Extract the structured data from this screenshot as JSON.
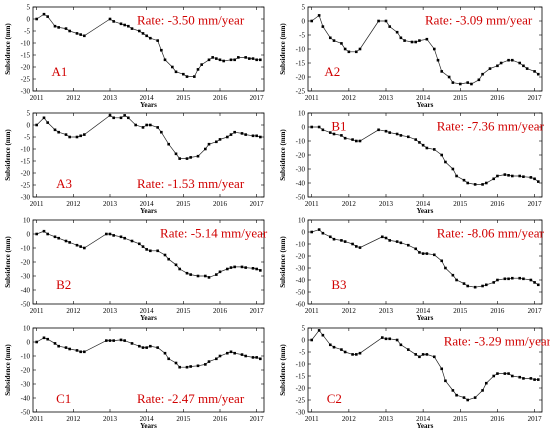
{
  "figure": {
    "panel_ylabel": "Subsidence (mm)",
    "panel_xlabel": "Years"
  },
  "chart_data": [
    {
      "type": "line",
      "panel": "A1",
      "annotation": "Rate: -3.50 mm/year",
      "xlabel": "Years",
      "ylabel": "Subsidence (mm)",
      "xlim": [
        2010.9,
        2017.2
      ],
      "ylim": [
        -30,
        5
      ],
      "xticks": [
        2011,
        2012,
        2013,
        2014,
        2015,
        2016,
        2017
      ],
      "yticks": [
        5,
        0,
        -5,
        -10,
        -15,
        -20,
        -25,
        -30
      ],
      "series": [
        {
          "x": [
            2011.0,
            2011.2,
            2011.3,
            2011.5,
            2011.6,
            2011.8,
            2011.9,
            2012.1,
            2012.2,
            2012.3,
            2013.0,
            2013.1,
            2013.3,
            2013.4,
            2013.5,
            2013.6,
            2013.8,
            2013.9,
            2014.0,
            2014.1,
            2014.3,
            2014.4,
            2014.5,
            2014.7,
            2014.8,
            2015.0,
            2015.1,
            2015.3,
            2015.4,
            2015.5,
            2015.7,
            2015.8,
            2015.9,
            2016.0,
            2016.1,
            2016.3,
            2016.4,
            2016.5,
            2016.7,
            2016.8,
            2016.9,
            2017.0,
            2017.1
          ],
          "y": [
            0,
            2,
            1,
            -3,
            -3.5,
            -4,
            -5,
            -6,
            -6.5,
            -7,
            0,
            -1,
            -2,
            -2.5,
            -3,
            -4,
            -5,
            -6,
            -7,
            -8,
            -9,
            -13,
            -17,
            -20,
            -22,
            -23,
            -24,
            -24,
            -21,
            -19,
            -17,
            -16,
            -16.5,
            -17,
            -17.5,
            -17,
            -17,
            -16,
            -16,
            -16.5,
            -16.5,
            -17,
            -17
          ]
        }
      ]
    },
    {
      "type": "line",
      "panel": "A2",
      "annotation": "Rate: -3.09 mm/year",
      "xlabel": "Years",
      "ylabel": "Subsidence (mm)",
      "xlim": [
        2010.9,
        2017.2
      ],
      "ylim": [
        -25,
        5
      ],
      "xticks": [
        2011,
        2012,
        2013,
        2014,
        2015,
        2016,
        2017
      ],
      "yticks": [
        5,
        0,
        -5,
        -10,
        -15,
        -20,
        -25
      ],
      "series": [
        {
          "x": [
            2011.0,
            2011.2,
            2011.3,
            2011.5,
            2011.6,
            2011.8,
            2011.9,
            2012.0,
            2012.2,
            2012.3,
            2012.8,
            2013.0,
            2013.1,
            2013.3,
            2013.4,
            2013.5,
            2013.7,
            2013.8,
            2013.9,
            2014.1,
            2014.3,
            2014.4,
            2014.5,
            2014.7,
            2014.8,
            2015.0,
            2015.2,
            2015.3,
            2015.5,
            2015.6,
            2015.8,
            2016.0,
            2016.1,
            2016.3,
            2016.4,
            2016.6,
            2016.7,
            2016.8,
            2017.0,
            2017.1
          ],
          "y": [
            0,
            2,
            -2,
            -6,
            -7,
            -8,
            -10,
            -11,
            -11,
            -10,
            0,
            0,
            -2,
            -4,
            -6,
            -7,
            -7.5,
            -7.5,
            -7,
            -6.5,
            -10,
            -14,
            -18,
            -20,
            -22,
            -22.5,
            -22,
            -22.5,
            -21,
            -19,
            -17,
            -16,
            -15,
            -14,
            -14,
            -15,
            -16,
            -17,
            -18,
            -19
          ]
        }
      ]
    },
    {
      "type": "line",
      "panel": "A3",
      "annotation": "Rate: -1.53 mm/year",
      "xlabel": "Years",
      "ylabel": "Subsidence (mm)",
      "xlim": [
        2010.9,
        2017.2
      ],
      "ylim": [
        -30,
        5
      ],
      "xticks": [
        2011,
        2012,
        2013,
        2014,
        2015,
        2016,
        2017
      ],
      "yticks": [
        5,
        0,
        -5,
        -10,
        -15,
        -20,
        -25,
        -30
      ],
      "series": [
        {
          "x": [
            2011.0,
            2011.2,
            2011.3,
            2011.5,
            2011.6,
            2011.8,
            2011.9,
            2012.1,
            2012.2,
            2012.3,
            2013.0,
            2013.1,
            2013.3,
            2013.4,
            2013.5,
            2013.7,
            2013.9,
            2014.0,
            2014.1,
            2014.3,
            2014.4,
            2014.6,
            2014.8,
            2014.9,
            2015.1,
            2015.2,
            2015.4,
            2015.6,
            2015.7,
            2015.9,
            2016.0,
            2016.2,
            2016.3,
            2016.4,
            2016.6,
            2016.7,
            2016.9,
            2017.0,
            2017.1
          ],
          "y": [
            0,
            3,
            1,
            -2,
            -3,
            -4,
            -5,
            -5,
            -4.5,
            -4,
            4,
            3,
            3,
            4,
            3,
            0,
            -1,
            0,
            0,
            -1,
            -3,
            -8,
            -12,
            -14,
            -14,
            -13.5,
            -13,
            -10,
            -8,
            -7,
            -6,
            -5,
            -4,
            -3,
            -3.5,
            -4,
            -4.5,
            -4.5,
            -5
          ]
        }
      ]
    },
    {
      "type": "line",
      "panel": "B1",
      "annotation": "Rate: -7.36 mm/year",
      "xlabel": "Years",
      "ylabel": "Subsidence (mm)",
      "xlim": [
        2010.9,
        2017.2
      ],
      "ylim": [
        -50,
        10
      ],
      "xticks": [
        2011,
        2012,
        2013,
        2014,
        2015,
        2016,
        2017
      ],
      "yticks": [
        10,
        0,
        -10,
        -20,
        -30,
        -40,
        -50
      ],
      "series": [
        {
          "x": [
            2011.0,
            2011.2,
            2011.3,
            2011.5,
            2011.6,
            2011.8,
            2011.9,
            2012.1,
            2012.2,
            2012.3,
            2012.8,
            2013.0,
            2013.1,
            2013.3,
            2013.4,
            2013.6,
            2013.8,
            2013.9,
            2014.0,
            2014.1,
            2014.3,
            2014.5,
            2014.6,
            2014.8,
            2014.9,
            2015.1,
            2015.2,
            2015.4,
            2015.6,
            2015.7,
            2015.9,
            2016.0,
            2016.2,
            2016.3,
            2016.4,
            2016.6,
            2016.7,
            2016.9,
            2017.0,
            2017.1
          ],
          "y": [
            0,
            0,
            -2,
            -4,
            -5,
            -6,
            -8,
            -9,
            -10,
            -10,
            -2,
            -3,
            -4,
            -5,
            -6,
            -7,
            -9,
            -11,
            -13,
            -15,
            -16,
            -20,
            -25,
            -30,
            -35,
            -38,
            -40,
            -41,
            -41,
            -40,
            -37,
            -35,
            -34,
            -34.5,
            -35,
            -35,
            -35.5,
            -36,
            -37,
            -39
          ]
        }
      ]
    },
    {
      "type": "line",
      "panel": "B2",
      "annotation": "Rate: -5.14 mm/year",
      "xlabel": "Years",
      "ylabel": "Subsidence (mm)",
      "xlim": [
        2010.9,
        2017.2
      ],
      "ylim": [
        -50,
        10
      ],
      "xticks": [
        2011,
        2012,
        2013,
        2014,
        2015,
        2016,
        2017
      ],
      "yticks": [
        10,
        0,
        -10,
        -20,
        -30,
        -40,
        -50
      ],
      "series": [
        {
          "x": [
            2011.0,
            2011.2,
            2011.3,
            2011.5,
            2011.6,
            2011.8,
            2011.9,
            2012.1,
            2012.2,
            2012.3,
            2012.9,
            2013.0,
            2013.1,
            2013.3,
            2013.4,
            2013.6,
            2013.8,
            2013.9,
            2014.0,
            2014.1,
            2014.3,
            2014.5,
            2014.6,
            2014.8,
            2014.9,
            2015.1,
            2015.2,
            2015.4,
            2015.6,
            2015.7,
            2015.9,
            2016.0,
            2016.2,
            2016.3,
            2016.4,
            2016.6,
            2016.7,
            2016.9,
            2017.0,
            2017.1
          ],
          "y": [
            0,
            2,
            0,
            -2,
            -3,
            -5,
            -6,
            -8,
            -9,
            -10,
            0,
            0,
            -1,
            -2,
            -3,
            -5,
            -7,
            -9,
            -11,
            -12,
            -12,
            -15,
            -18,
            -22,
            -25,
            -28,
            -29,
            -30,
            -30,
            -31,
            -29,
            -27,
            -25,
            -24,
            -23.5,
            -23.5,
            -24,
            -24.5,
            -25,
            -26
          ]
        }
      ]
    },
    {
      "type": "line",
      "panel": "B3",
      "annotation": "Rate: -8.06 mm/year",
      "xlabel": "Years",
      "ylabel": "Subsidence (mm)",
      "xlim": [
        2010.9,
        2017.2
      ],
      "ylim": [
        -60,
        10
      ],
      "xticks": [
        2011,
        2012,
        2013,
        2014,
        2015,
        2016,
        2017
      ],
      "yticks": [
        10,
        0,
        -10,
        -20,
        -30,
        -40,
        -50,
        -60
      ],
      "series": [
        {
          "x": [
            2011.0,
            2011.2,
            2011.3,
            2011.5,
            2011.6,
            2011.8,
            2011.9,
            2012.1,
            2012.2,
            2012.3,
            2012.9,
            2013.0,
            2013.1,
            2013.3,
            2013.4,
            2013.6,
            2013.8,
            2013.9,
            2014.0,
            2014.1,
            2014.3,
            2014.5,
            2014.6,
            2014.8,
            2014.9,
            2015.1,
            2015.2,
            2015.4,
            2015.6,
            2015.7,
            2015.9,
            2016.0,
            2016.2,
            2016.3,
            2016.4,
            2016.6,
            2016.7,
            2016.9,
            2017.0,
            2017.1
          ],
          "y": [
            0,
            2,
            -1,
            -4,
            -6,
            -7,
            -8,
            -10,
            -12,
            -13,
            -4,
            -5,
            -7,
            -8,
            -9,
            -11,
            -14,
            -17,
            -18,
            -18,
            -19,
            -24,
            -30,
            -36,
            -40,
            -43,
            -45,
            -46,
            -45,
            -44,
            -42,
            -40,
            -39,
            -39,
            -38.5,
            -38.5,
            -39,
            -40,
            -42,
            -44
          ]
        }
      ]
    },
    {
      "type": "line",
      "panel": "C1",
      "annotation": "Rate: -2.47 mm/year",
      "xlabel": "Years",
      "ylabel": "Subsidence (mm)",
      "xlim": [
        2010.9,
        2017.2
      ],
      "ylim": [
        -50,
        10
      ],
      "xticks": [
        2011,
        2012,
        2013,
        2014,
        2015,
        2016,
        2017
      ],
      "yticks": [
        10,
        0,
        -10,
        -20,
        -30,
        -40,
        -50
      ],
      "series": [
        {
          "x": [
            2011.0,
            2011.2,
            2011.3,
            2011.5,
            2011.6,
            2011.8,
            2011.9,
            2012.1,
            2012.2,
            2012.3,
            2012.9,
            2013.0,
            2013.1,
            2013.3,
            2013.4,
            2013.6,
            2013.8,
            2013.9,
            2014.0,
            2014.1,
            2014.3,
            2014.5,
            2014.6,
            2014.8,
            2014.9,
            2015.1,
            2015.2,
            2015.4,
            2015.6,
            2015.7,
            2015.9,
            2016.0,
            2016.2,
            2016.3,
            2016.4,
            2016.6,
            2016.7,
            2016.9,
            2017.0,
            2017.1
          ],
          "y": [
            0,
            3,
            2,
            -1,
            -3,
            -4,
            -5,
            -6,
            -7,
            -7,
            1,
            1,
            1,
            1.5,
            1,
            -1,
            -3,
            -4,
            -4,
            -3,
            -4,
            -8,
            -12,
            -15,
            -18,
            -18,
            -17.5,
            -17,
            -16,
            -14,
            -12,
            -10,
            -8,
            -7,
            -8,
            -9,
            -10,
            -11,
            -11,
            -12
          ]
        }
      ]
    },
    {
      "type": "line",
      "panel": "C2",
      "annotation": "Rate: -3.29 mm/year",
      "xlabel": "Years",
      "ylabel": "Subsidence (mm)",
      "xlim": [
        2010.9,
        2017.2
      ],
      "ylim": [
        -30,
        5
      ],
      "xticks": [
        2011,
        2012,
        2013,
        2014,
        2015,
        2016,
        2017
      ],
      "yticks": [
        5,
        0,
        -5,
        -10,
        -15,
        -20,
        -25,
        -30
      ],
      "series": [
        {
          "x": [
            2011.0,
            2011.2,
            2011.3,
            2011.5,
            2011.6,
            2011.8,
            2011.9,
            2012.1,
            2012.2,
            2012.3,
            2012.9,
            2013.0,
            2013.1,
            2013.3,
            2013.4,
            2013.6,
            2013.8,
            2013.9,
            2014.0,
            2014.1,
            2014.3,
            2014.5,
            2014.6,
            2014.8,
            2014.9,
            2015.1,
            2015.2,
            2015.4,
            2015.6,
            2015.7,
            2015.9,
            2016.0,
            2016.2,
            2016.3,
            2016.4,
            2016.6,
            2016.7,
            2016.9,
            2017.0,
            2017.1
          ],
          "y": [
            0,
            4,
            2,
            -2,
            -3,
            -4,
            -5,
            -6,
            -6,
            -5.5,
            1,
            0.5,
            0.5,
            0,
            -2,
            -4,
            -6,
            -7,
            -6,
            -6,
            -7,
            -12,
            -17,
            -21,
            -23,
            -24,
            -25,
            -24,
            -21,
            -18,
            -15,
            -14,
            -14,
            -14,
            -15,
            -15.5,
            -16,
            -16,
            -16.5,
            -16.5
          ]
        }
      ]
    }
  ]
}
